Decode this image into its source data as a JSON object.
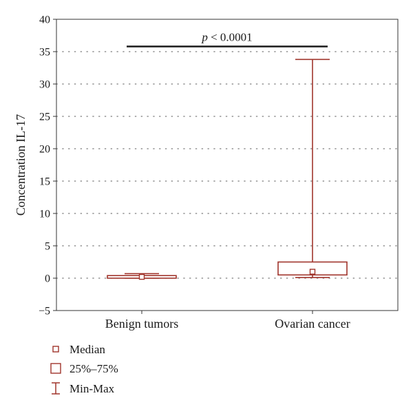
{
  "chart_data": {
    "type": "box",
    "ylabel": "Concentration IL-17",
    "xlabel": "",
    "ylim": [
      -5,
      40
    ],
    "yticks": [
      -5,
      0,
      5,
      10,
      15,
      20,
      25,
      30,
      35,
      40
    ],
    "ytick_labels": [
      "−5",
      "0",
      "5",
      "10",
      "15",
      "20",
      "25",
      "30",
      "35",
      "40"
    ],
    "grid": "horizontal dotted",
    "categories": [
      "Benign tumors",
      "Ovarian cancer"
    ],
    "boxes": [
      {
        "category": "Benign tumors",
        "min": 0.0,
        "q1": 0.0,
        "median": 0.2,
        "q3": 0.4,
        "max": 0.7
      },
      {
        "category": "Ovarian cancer",
        "min": 0.1,
        "q1": 0.5,
        "median": 1.0,
        "q3": 2.5,
        "max": 33.8
      }
    ],
    "annotation": {
      "text": "p < 0.0001",
      "y": 35.8,
      "from": "Benign tumors",
      "to": "Ovarian cancer"
    },
    "legend": {
      "position": "bottom-left",
      "items": [
        {
          "label": "Median",
          "symbol": "small-square-icon"
        },
        {
          "label": "25%–75%",
          "symbol": "box-square-icon"
        },
        {
          "label": "Min-Max",
          "symbol": "whisker-icon"
        }
      ]
    },
    "colors": {
      "series": "#a0342b",
      "annotation": "#1a1a1a",
      "grid": "#7a7a7a",
      "axis": "#333333"
    }
  }
}
